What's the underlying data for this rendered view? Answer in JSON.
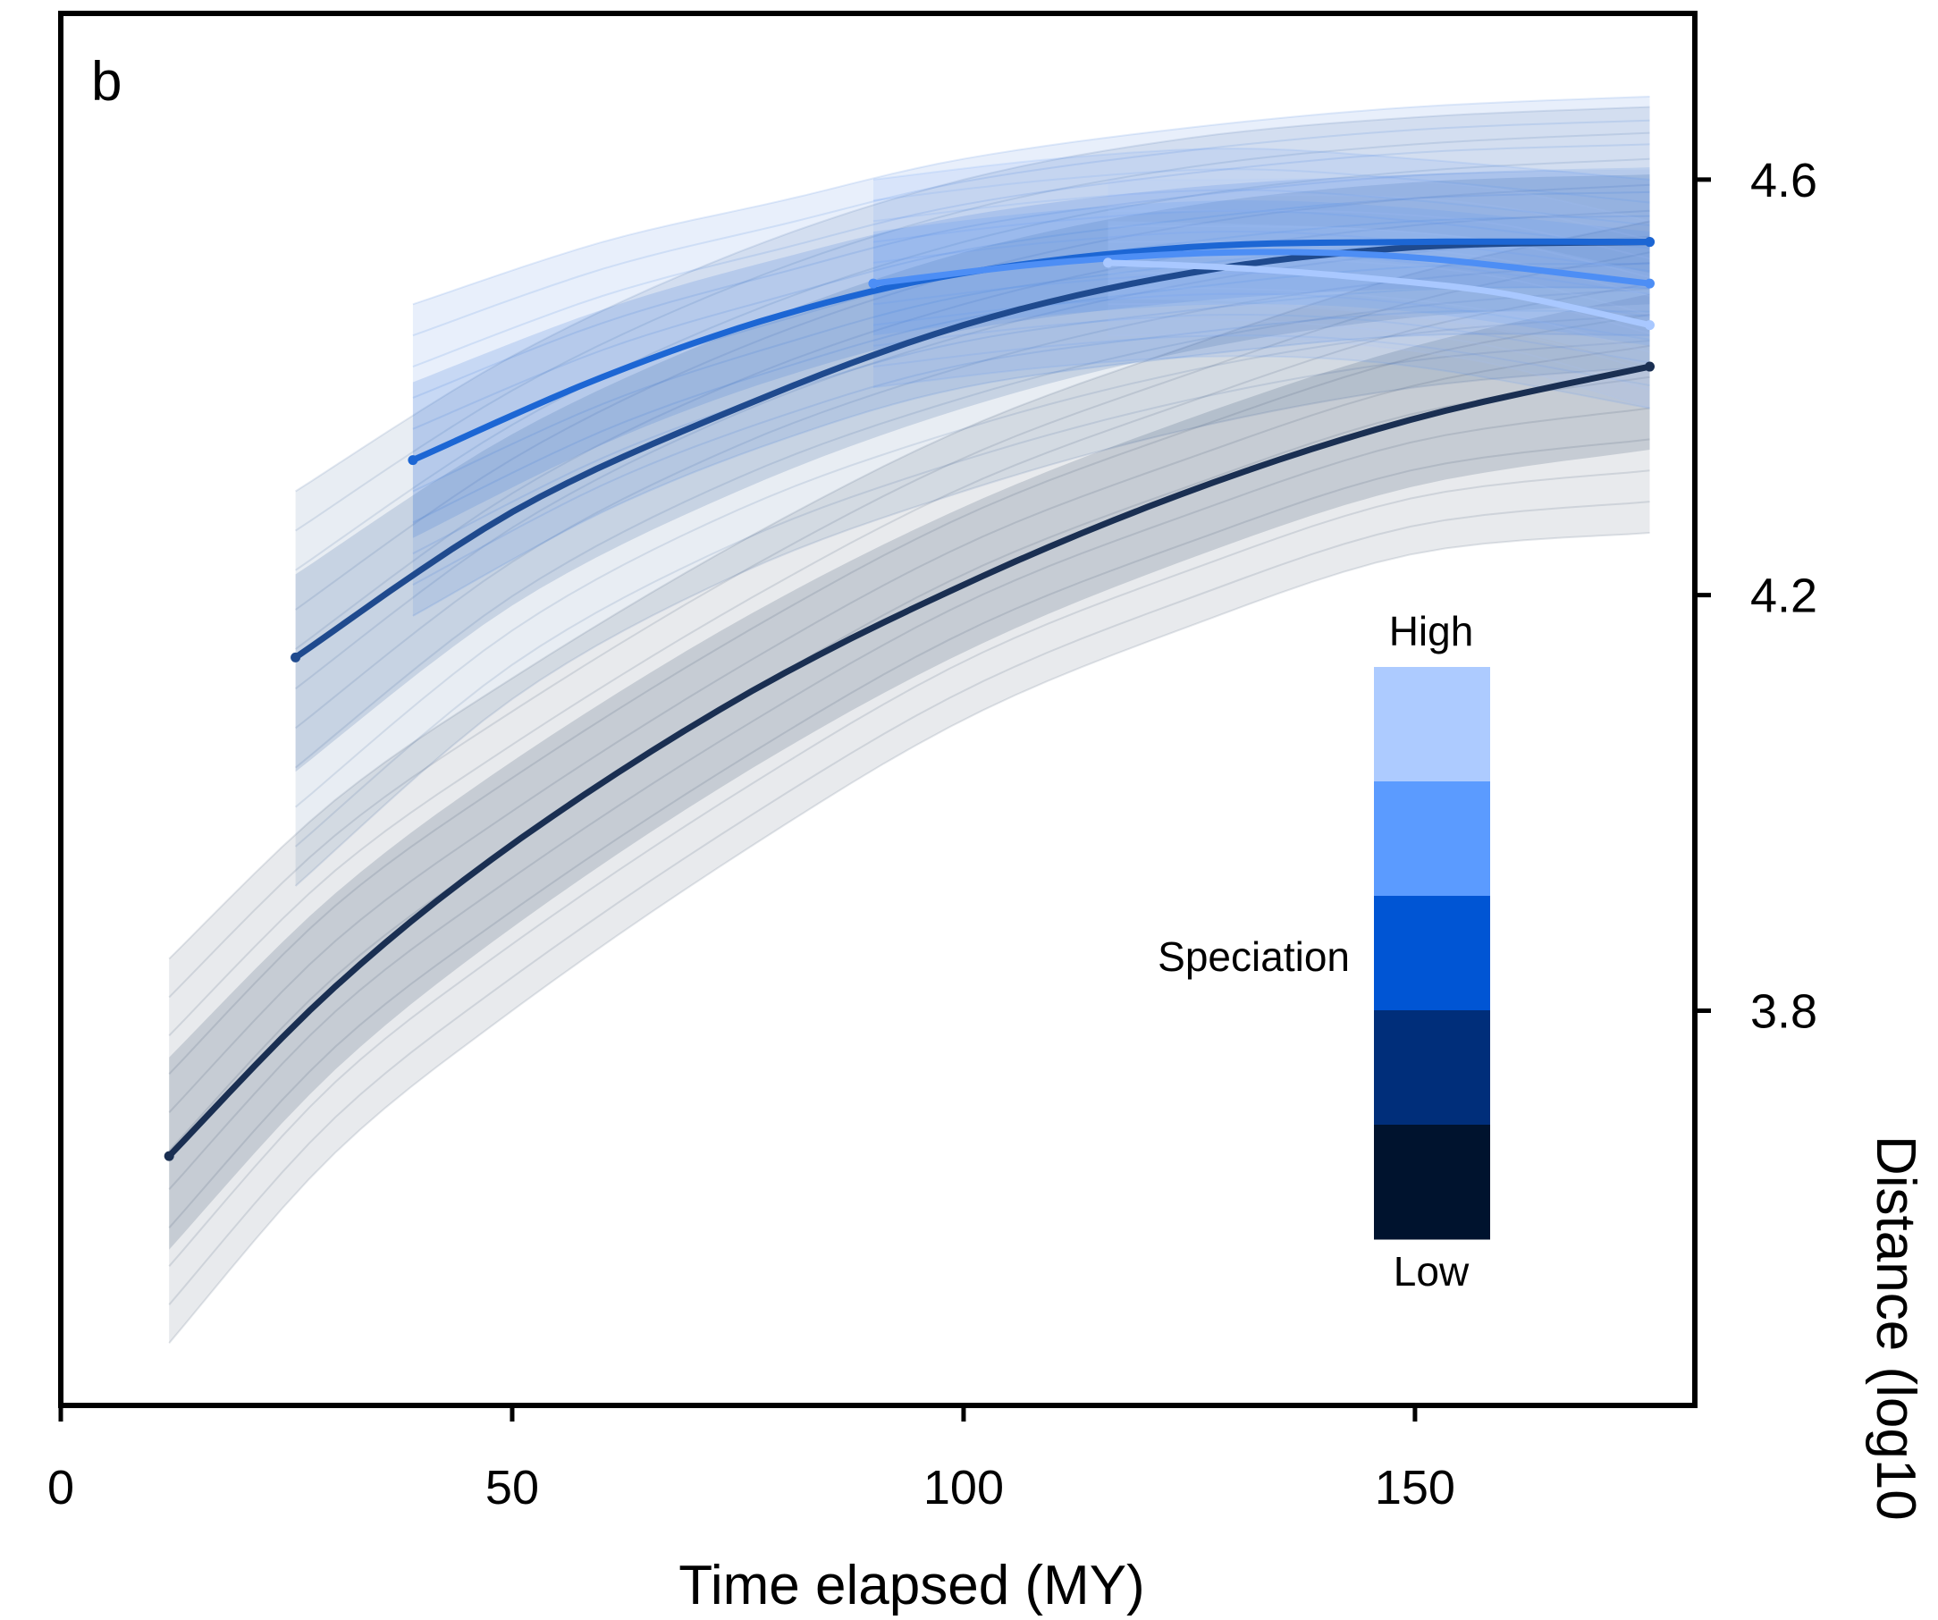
{
  "chart_data": {
    "type": "line",
    "panel_label": "b",
    "xlabel": "Time elapsed (MY)",
    "ylabel": "Distance (log10",
    "xlim": [
      0,
      181
    ],
    "ylim": [
      3.42,
      4.76
    ],
    "x_ticks": [
      0,
      50,
      100,
      150
    ],
    "x_tick_labels": [
      "0",
      "50",
      "100",
      "150"
    ],
    "y_ticks": [
      3.8,
      4.2,
      4.6
    ],
    "y_tick_labels": [
      "3.8",
      "4.2",
      "4.6"
    ],
    "y_axis_side": "right",
    "grid": false,
    "legend": {
      "title": "Speciation",
      "high_label": "High",
      "low_label": "Low",
      "colors": [
        "#adcbff",
        "#5b9bff",
        "#0055d4",
        "#002e7a",
        "#00132e"
      ]
    },
    "series": [
      {
        "color": "#1a2f52",
        "x_start": 12,
        "x_end": 176,
        "x": [
          12,
          30,
          50,
          75,
          100,
          125,
          150,
          176
        ],
        "y": [
          3.66,
          3.82,
          3.96,
          4.1,
          4.21,
          4.3,
          4.37,
          4.42
        ],
        "band": {
          "lower": [
            3.48,
            3.66,
            3.8,
            3.95,
            4.08,
            4.17,
            4.24,
            4.26
          ],
          "upper": [
            3.85,
            4.0,
            4.12,
            4.25,
            4.36,
            4.44,
            4.51,
            4.56
          ]
        }
      },
      {
        "color": "#1f4a8e",
        "x_start": 26,
        "x_end": 176,
        "x": [
          26,
          50,
          75,
          100,
          125,
          150,
          176
        ],
        "y": [
          4.14,
          4.28,
          4.38,
          4.46,
          4.51,
          4.535,
          4.54
        ],
        "band": {
          "lower": [
            3.92,
            4.1,
            4.22,
            4.3,
            4.36,
            4.4,
            4.42
          ],
          "upper": [
            4.3,
            4.43,
            4.53,
            4.6,
            4.64,
            4.66,
            4.67
          ]
        }
      },
      {
        "color": "#1c66d4",
        "x_start": 39,
        "x_end": 176,
        "x": [
          39,
          60,
          80,
          100,
          125,
          150,
          176
        ],
        "y": [
          4.33,
          4.41,
          4.47,
          4.51,
          4.535,
          4.54,
          4.54
        ],
        "band": {
          "lower": [
            4.18,
            4.28,
            4.35,
            4.4,
            4.43,
            4.45,
            4.45
          ],
          "upper": [
            4.48,
            4.54,
            4.58,
            4.62,
            4.65,
            4.67,
            4.68
          ]
        }
      },
      {
        "color": "#4d8ef5",
        "x_start": 90,
        "x_end": 176,
        "x": [
          90,
          110,
          130,
          150,
          176
        ],
        "y": [
          4.5,
          4.52,
          4.53,
          4.525,
          4.5
        ],
        "band": {
          "lower": [
            4.4,
            4.42,
            4.43,
            4.42,
            4.38
          ],
          "upper": [
            4.6,
            4.62,
            4.63,
            4.62,
            4.6
          ]
        }
      },
      {
        "color": "#a9c8ff",
        "x_start": 116,
        "x_end": 176,
        "x": [
          116,
          130,
          145,
          160,
          176
        ],
        "y": [
          4.52,
          4.515,
          4.505,
          4.49,
          4.46
        ],
        "band": {
          "lower": [
            4.45,
            4.45,
            4.44,
            4.42,
            4.38
          ],
          "upper": [
            4.6,
            4.6,
            4.6,
            4.59,
            4.56
          ]
        }
      }
    ]
  }
}
